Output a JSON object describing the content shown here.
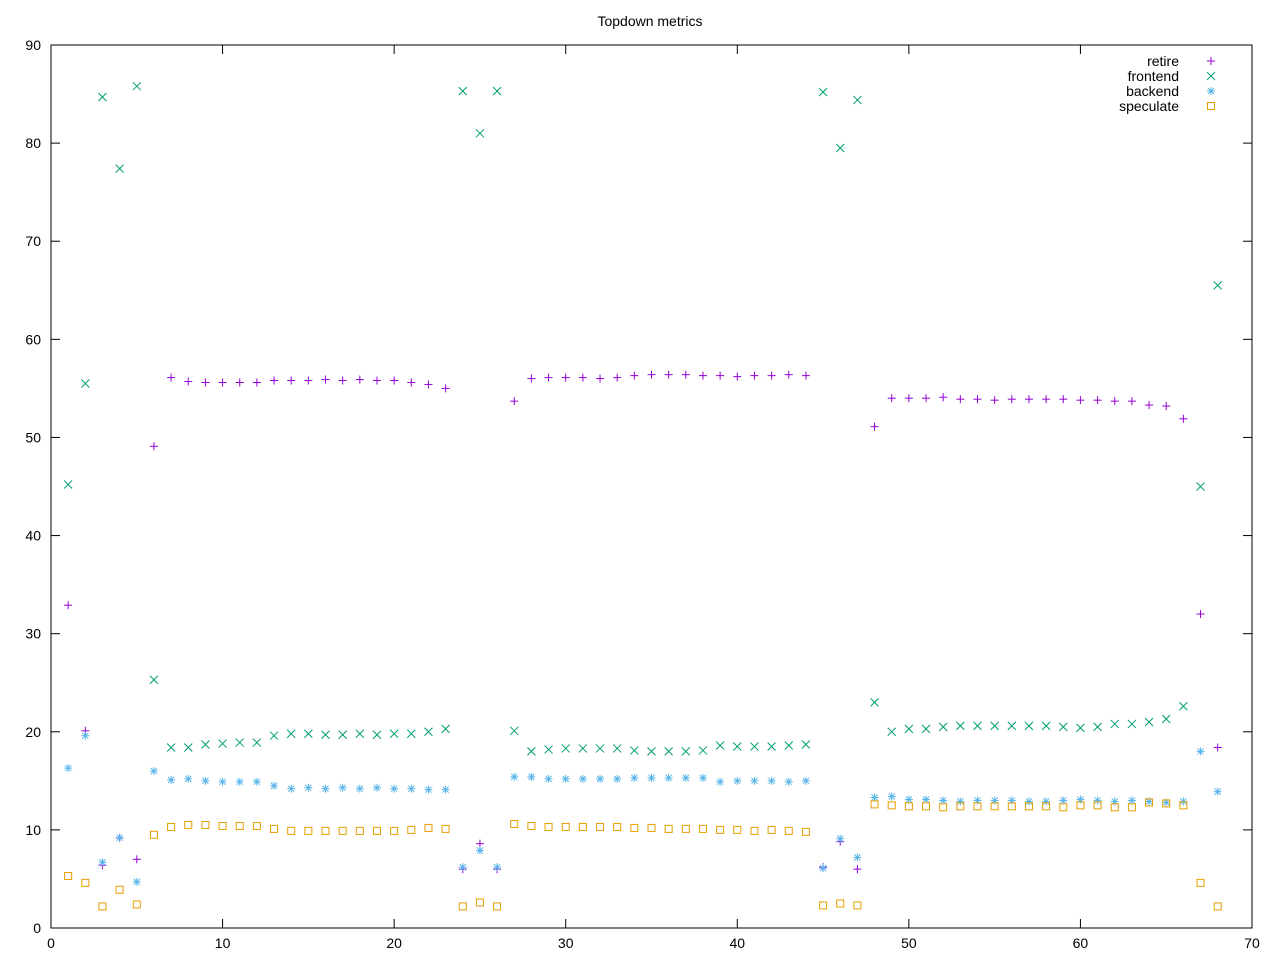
{
  "colors": {
    "retire": "#9400d3",
    "frontend": "#009e73",
    "backend": "#56b4e9",
    "speculate": "#e69f00",
    "axis": "#000000",
    "background": "#ffffff"
  },
  "chart_data": {
    "type": "scatter",
    "title": "Topdown metrics",
    "xlabel": "",
    "ylabel": "",
    "xlim": [
      0,
      70
    ],
    "ylim": [
      0,
      90
    ],
    "xticks": [
      0,
      10,
      20,
      30,
      40,
      50,
      60,
      70
    ],
    "yticks": [
      0,
      10,
      20,
      30,
      40,
      50,
      60,
      70,
      80,
      90
    ],
    "grid": false,
    "legend_position": "top-right",
    "x": [
      1,
      2,
      3,
      4,
      5,
      6,
      7,
      8,
      9,
      10,
      11,
      12,
      13,
      14,
      15,
      16,
      17,
      18,
      19,
      20,
      21,
      22,
      23,
      24,
      25,
      26,
      27,
      28,
      29,
      30,
      31,
      32,
      33,
      34,
      35,
      36,
      37,
      38,
      39,
      40,
      41,
      42,
      43,
      44,
      45,
      46,
      47,
      48,
      49,
      50,
      51,
      52,
      53,
      54,
      55,
      56,
      57,
      58,
      59,
      60,
      61,
      62,
      63,
      64,
      65,
      66,
      67,
      68
    ],
    "series": [
      {
        "name": "retire",
        "marker": "plus",
        "values": [
          32.9,
          20.1,
          6.4,
          9.2,
          7.0,
          49.1,
          56.1,
          55.7,
          55.6,
          55.6,
          55.6,
          55.6,
          55.8,
          55.8,
          55.8,
          55.9,
          55.8,
          55.9,
          55.8,
          55.8,
          55.6,
          55.4,
          55.0,
          6.0,
          8.6,
          6.0,
          53.7,
          56.0,
          56.1,
          56.1,
          56.1,
          56.0,
          56.1,
          56.3,
          56.4,
          56.4,
          56.4,
          56.3,
          56.3,
          56.2,
          56.3,
          56.3,
          56.4,
          56.3,
          6.2,
          8.8,
          6.0,
          51.1,
          54.0,
          54.0,
          54.0,
          54.1,
          53.9,
          53.9,
          53.8,
          53.9,
          53.9,
          53.9,
          53.9,
          53.8,
          53.8,
          53.7,
          53.7,
          53.3,
          53.2,
          51.9,
          32.0,
          18.4
        ]
      },
      {
        "name": "frontend",
        "marker": "cross",
        "values": [
          45.2,
          55.5,
          84.7,
          77.4,
          85.8,
          25.3,
          18.4,
          18.4,
          18.7,
          18.8,
          18.9,
          18.9,
          19.6,
          19.8,
          19.8,
          19.7,
          19.7,
          19.8,
          19.7,
          19.8,
          19.8,
          20.0,
          20.3,
          85.3,
          81.0,
          85.3,
          20.1,
          18.0,
          18.2,
          18.3,
          18.3,
          18.3,
          18.3,
          18.1,
          18.0,
          18.0,
          18.0,
          18.1,
          18.6,
          18.5,
          18.5,
          18.5,
          18.6,
          18.7,
          85.2,
          79.5,
          84.4,
          23.0,
          20.0,
          20.3,
          20.3,
          20.5,
          20.6,
          20.6,
          20.6,
          20.6,
          20.6,
          20.6,
          20.5,
          20.4,
          20.5,
          20.8,
          20.8,
          21.0,
          21.3,
          22.6,
          45.0,
          65.5
        ]
      },
      {
        "name": "backend",
        "marker": "star",
        "values": [
          16.3,
          19.6,
          6.7,
          9.2,
          4.7,
          16.0,
          15.1,
          15.2,
          15.0,
          14.9,
          14.9,
          14.9,
          14.5,
          14.2,
          14.3,
          14.2,
          14.3,
          14.2,
          14.3,
          14.2,
          14.2,
          14.1,
          14.1,
          6.2,
          7.9,
          6.2,
          15.4,
          15.4,
          15.2,
          15.2,
          15.2,
          15.2,
          15.2,
          15.3,
          15.3,
          15.3,
          15.3,
          15.3,
          14.9,
          15.0,
          15.0,
          15.0,
          14.9,
          15.0,
          6.1,
          9.1,
          7.2,
          13.3,
          13.4,
          13.1,
          13.1,
          13.0,
          12.9,
          13.0,
          13.0,
          13.0,
          12.9,
          12.9,
          13.0,
          13.1,
          13.0,
          12.9,
          13.0,
          12.9,
          12.8,
          12.9,
          18.0,
          13.9
        ]
      },
      {
        "name": "speculate",
        "marker": "square",
        "values": [
          5.3,
          4.6,
          2.2,
          3.9,
          2.4,
          9.5,
          10.3,
          10.5,
          10.5,
          10.4,
          10.4,
          10.4,
          10.1,
          9.9,
          9.9,
          9.9,
          9.9,
          9.9,
          9.9,
          9.9,
          10.0,
          10.2,
          10.1,
          2.2,
          2.6,
          2.2,
          10.6,
          10.4,
          10.3,
          10.3,
          10.3,
          10.3,
          10.3,
          10.2,
          10.2,
          10.1,
          10.1,
          10.1,
          10.0,
          10.0,
          9.9,
          10.0,
          9.9,
          9.8,
          2.3,
          2.5,
          2.3,
          12.6,
          12.5,
          12.4,
          12.4,
          12.3,
          12.4,
          12.4,
          12.4,
          12.4,
          12.4,
          12.4,
          12.3,
          12.5,
          12.5,
          12.3,
          12.3,
          12.8,
          12.7,
          12.5,
          4.6,
          2.2
        ]
      }
    ]
  }
}
